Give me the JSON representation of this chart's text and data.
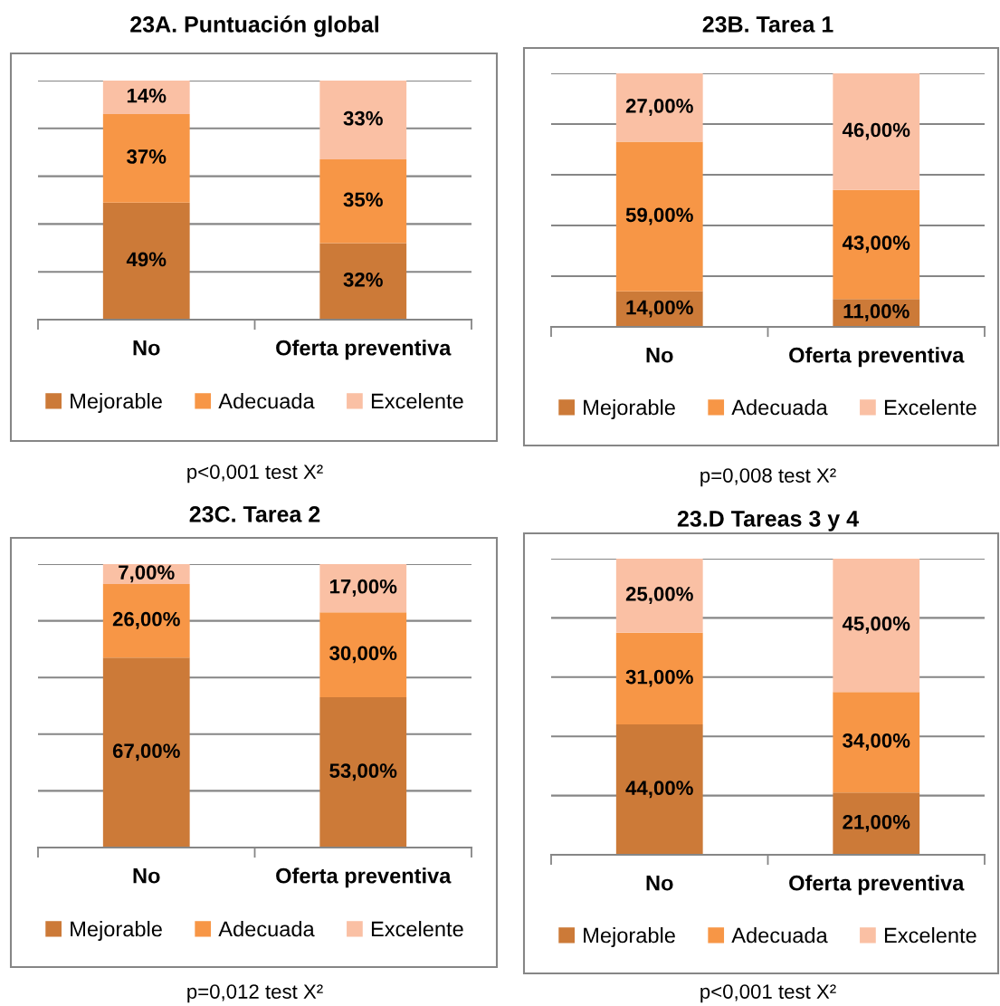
{
  "chart_data": [
    {
      "type": "bar",
      "stacked": true,
      "title": "23A. Puntuación global",
      "categories": [
        "No",
        "Oferta preventiva"
      ],
      "series": [
        {
          "name": "Mejorable",
          "color": "#cc7a38",
          "values": [
            49,
            32
          ],
          "value_labels": [
            "49%",
            "32%"
          ]
        },
        {
          "name": "Adecuada",
          "color": "#f79646",
          "values": [
            37,
            35
          ],
          "value_labels": [
            "37%",
            "35%"
          ]
        },
        {
          "name": "Excelente",
          "color": "#fac0a4",
          "values": [
            14,
            33
          ],
          "value_labels": [
            "14%",
            "33%"
          ]
        }
      ],
      "ylim": [
        0,
        100
      ],
      "yticks": [
        {
          "value": 0,
          "label": null
        },
        {
          "value": 20,
          "label": null
        },
        {
          "value": 40,
          "label": null
        },
        {
          "value": 60,
          "label": null
        },
        {
          "value": 80,
          "label": null
        },
        {
          "value": 100,
          "label": null
        }
      ],
      "grid": "y",
      "legend": "bottom",
      "tick_labels": "x",
      "annotations": [
        "p<0,001 test X²"
      ]
    },
    {
      "type": "bar",
      "stacked": true,
      "title": "23B. Tarea 1",
      "categories": [
        "No",
        "Oferta preventiva"
      ],
      "series": [
        {
          "name": "Mejorable",
          "color": "#cc7a38",
          "values": [
            14,
            11
          ],
          "value_labels": [
            "14,00%",
            "11,00%"
          ]
        },
        {
          "name": "Adecuada",
          "color": "#f79646",
          "values": [
            59,
            43
          ],
          "value_labels": [
            "59,00%",
            "43,00%"
          ]
        },
        {
          "name": "Excelente",
          "color": "#fac0a4",
          "values": [
            27,
            46
          ],
          "value_labels": [
            "27,00%",
            "46,00%"
          ]
        }
      ],
      "ylim": [
        0,
        100
      ],
      "yticks": [
        {
          "value": 0,
          "label": null
        },
        {
          "value": 20,
          "label": null
        },
        {
          "value": 40,
          "label": null
        },
        {
          "value": 60,
          "label": null
        },
        {
          "value": 80,
          "label": null
        },
        {
          "value": 100,
          "label": null
        }
      ],
      "grid": "y",
      "legend": "bottom",
      "tick_labels": "x",
      "annotations": [
        "p=0,008 test X²"
      ]
    },
    {
      "type": "bar",
      "stacked": true,
      "title": "23C. Tarea 2",
      "categories": [
        "No",
        "Oferta preventiva"
      ],
      "series": [
        {
          "name": "Mejorable",
          "color": "#cc7a38",
          "values": [
            67,
            53
          ],
          "value_labels": [
            "67,00%",
            "53,00%"
          ]
        },
        {
          "name": "Adecuada",
          "color": "#f79646",
          "values": [
            26,
            30
          ],
          "value_labels": [
            "26,00%",
            "30,00%"
          ]
        },
        {
          "name": "Excelente",
          "color": "#fac0a4",
          "values": [
            7,
            17
          ],
          "value_labels": [
            "7,00%",
            "17,00%"
          ]
        }
      ],
      "ylim": [
        0,
        100
      ],
      "yticks": [
        {
          "value": 0,
          "label": null
        },
        {
          "value": 20,
          "label": null
        },
        {
          "value": 40,
          "label": null
        },
        {
          "value": 60,
          "label": null
        },
        {
          "value": 80,
          "label": null
        },
        {
          "value": 100,
          "label": null
        }
      ],
      "grid": "y",
      "legend": "bottom",
      "tick_labels": "x",
      "annotations": [
        "p=0,012 test X²"
      ]
    },
    {
      "type": "bar",
      "stacked": true,
      "title": "23.D Tareas 3 y 4",
      "categories": [
        "No",
        "Oferta preventiva"
      ],
      "series": [
        {
          "name": "Mejorable",
          "color": "#cc7a38",
          "values": [
            44,
            21
          ],
          "value_labels": [
            "44,00%",
            "21,00%"
          ]
        },
        {
          "name": "Adecuada",
          "color": "#f79646",
          "values": [
            31,
            34
          ],
          "value_labels": [
            "31,00%",
            "34,00%"
          ]
        },
        {
          "name": "Excelente",
          "color": "#fac0a4",
          "values": [
            25,
            45
          ],
          "value_labels": [
            "25,00%",
            "45,00%"
          ]
        }
      ],
      "ylim": [
        0,
        100
      ],
      "yticks": [
        {
          "value": 0,
          "label": null
        },
        {
          "value": 20,
          "label": null
        },
        {
          "value": 40,
          "label": null
        },
        {
          "value": 60,
          "label": null
        },
        {
          "value": 80,
          "label": null
        },
        {
          "value": 100,
          "label": null
        }
      ],
      "grid": "y",
      "legend": "bottom",
      "tick_labels": "x",
      "annotations": [
        "p<0,001 test X²"
      ]
    }
  ]
}
